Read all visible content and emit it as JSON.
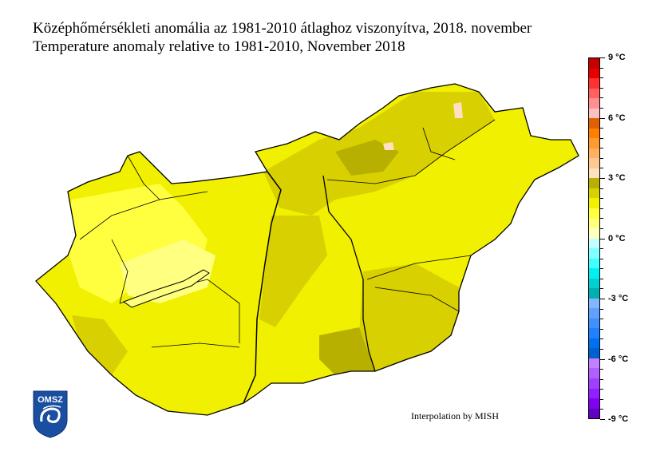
{
  "title_hu": "Középhőmérsékleti anomália az 1981-2010 átlaghoz viszonyítva, 2018. november",
  "title_en": "Temperature anomaly relative to 1981-2010, November 2018",
  "credit": "Interpolation by MISH",
  "logo_text": "OMSZ",
  "colorbar": {
    "min": -9,
    "max": 9,
    "step": 0.5,
    "unit": "°C",
    "labels": [
      "9 °C",
      "6 °C",
      "3 °C",
      "0 °C",
      "-3 °C",
      "-6 °C",
      "-9 °C"
    ],
    "colors_top_down": [
      "#c40000",
      "#e60000",
      "#ff3030",
      "#ff6060",
      "#ff9090",
      "#ffc0c0",
      "#e06000",
      "#ff8000",
      "#ff9a30",
      "#ffb060",
      "#ffc890",
      "#ffe0c0",
      "#b8b000",
      "#d8d000",
      "#f0f000",
      "#ffff40",
      "#ffff80",
      "#ffffc0",
      "#c0ffff",
      "#80ffff",
      "#40ffff",
      "#00f0f0",
      "#00d0d0",
      "#00b0b0",
      "#80b8ff",
      "#60a0ff",
      "#4090ff",
      "#2080ff",
      "#0070f0",
      "#0060d0",
      "#c080ff",
      "#b060ff",
      "#a040ff",
      "#9020ff",
      "#8000f0",
      "#6000c0"
    ]
  },
  "map_colors": {
    "main": "#f0f000",
    "darker": "#d8d000",
    "darkest": "#b8b000",
    "lighter": "#ffff40",
    "lightest": "#ffff80",
    "warm": "#ffe0c0"
  }
}
